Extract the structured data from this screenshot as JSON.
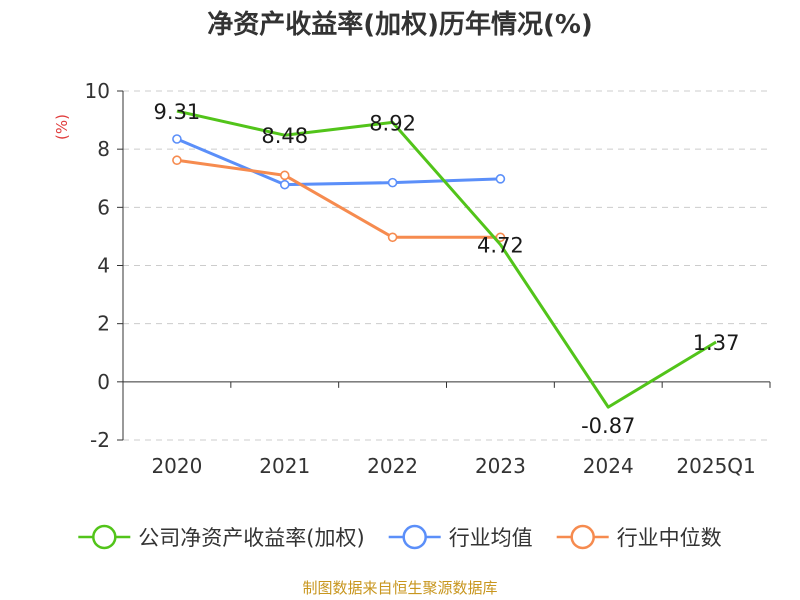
{
  "chart_data": {
    "type": "line",
    "title": "净资产收益率(加权)历年情况(%)",
    "ylabel": "(%)",
    "xlabel": "",
    "categories": [
      "2020",
      "2021",
      "2022",
      "2023",
      "2024",
      "2025Q1"
    ],
    "ylim": [
      -2,
      10
    ],
    "yticks": [
      -2,
      0,
      2,
      4,
      6,
      8,
      10
    ],
    "grid": true,
    "legend_position": "bottom",
    "series": [
      {
        "name": "公司净资产收益率(加权)",
        "color": "#52c41a",
        "values": [
          9.31,
          8.48,
          8.92,
          4.72,
          -0.87,
          1.37
        ],
        "labels": [
          "9.31",
          "8.48",
          "8.92",
          "4.72",
          "-0.87",
          "1.37"
        ],
        "markers": false
      },
      {
        "name": "行业均值",
        "color": "#5b8ff9",
        "values": [
          8.35,
          6.78,
          6.85,
          6.98,
          null,
          null
        ],
        "markers": true
      },
      {
        "name": "行业中位数",
        "color": "#f68b4f",
        "values": [
          7.62,
          7.1,
          4.97,
          4.97,
          null,
          null
        ],
        "markers": true
      }
    ]
  },
  "source": {
    "text": "制图数据来自恒生聚源数据库",
    "color": "#c8961e"
  }
}
